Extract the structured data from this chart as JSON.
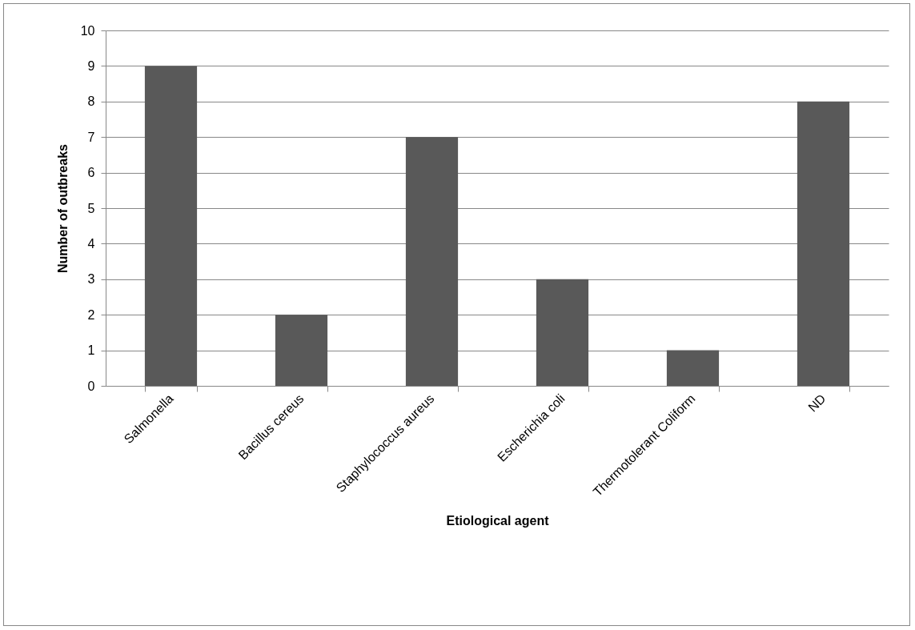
{
  "chart_data": {
    "type": "bar",
    "xlabel": "Etiological agent",
    "ylabel": "Number of outbreaks",
    "categories": [
      "Salmonella",
      "Bacillus cereus",
      "Staphylococcus aureus",
      "Escherichia coli",
      "Thermotolerant Coliform",
      "ND"
    ],
    "values": [
      9,
      2,
      7,
      3,
      1,
      8
    ],
    "color": "#595959",
    "ylim": [
      0,
      10
    ],
    "yticks": [
      0,
      1,
      2,
      3,
      4,
      5,
      6,
      7,
      8,
      9,
      10
    ],
    "grid": "y"
  }
}
